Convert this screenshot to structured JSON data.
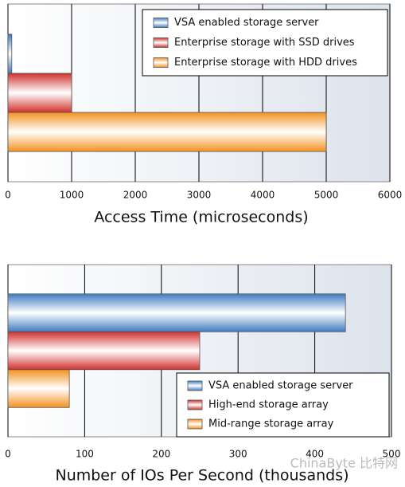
{
  "chart_data": [
    {
      "type": "bar",
      "orientation": "horizontal",
      "xlabel": "Access Time (microseconds)",
      "series": [
        {
          "name": "VSA enabled storage server",
          "color": "#3f7cc0",
          "values": [
            60
          ]
        },
        {
          "name": "Enterprise storage with SSD drives",
          "color": "#d0302c",
          "values": [
            1000
          ]
        },
        {
          "name": "Enterprise storage with HDD drives",
          "color": "#f39221",
          "values": [
            5000
          ]
        }
      ],
      "xlim": [
        0,
        6000
      ],
      "xticks": [
        0,
        1000,
        2000,
        3000,
        4000,
        5000,
        6000
      ],
      "grid": true,
      "legend": "upper right"
    },
    {
      "type": "bar",
      "orientation": "horizontal",
      "xlabel": "Number of IOs Per Second (thousands)",
      "series": [
        {
          "name": "VSA enabled storage server",
          "color": "#3f7cc0",
          "values": [
            440
          ]
        },
        {
          "name": "High-end storage array",
          "color": "#d0302c",
          "values": [
            250
          ]
        },
        {
          "name": "Mid-range storage array",
          "color": "#f39221",
          "values": [
            80
          ]
        }
      ],
      "xlim": [
        0,
        500
      ],
      "xticks": [
        0,
        100,
        200,
        300,
        400,
        500
      ],
      "grid": true,
      "legend": "lower right"
    }
  ],
  "watermark": "ChinaByte 比特网"
}
